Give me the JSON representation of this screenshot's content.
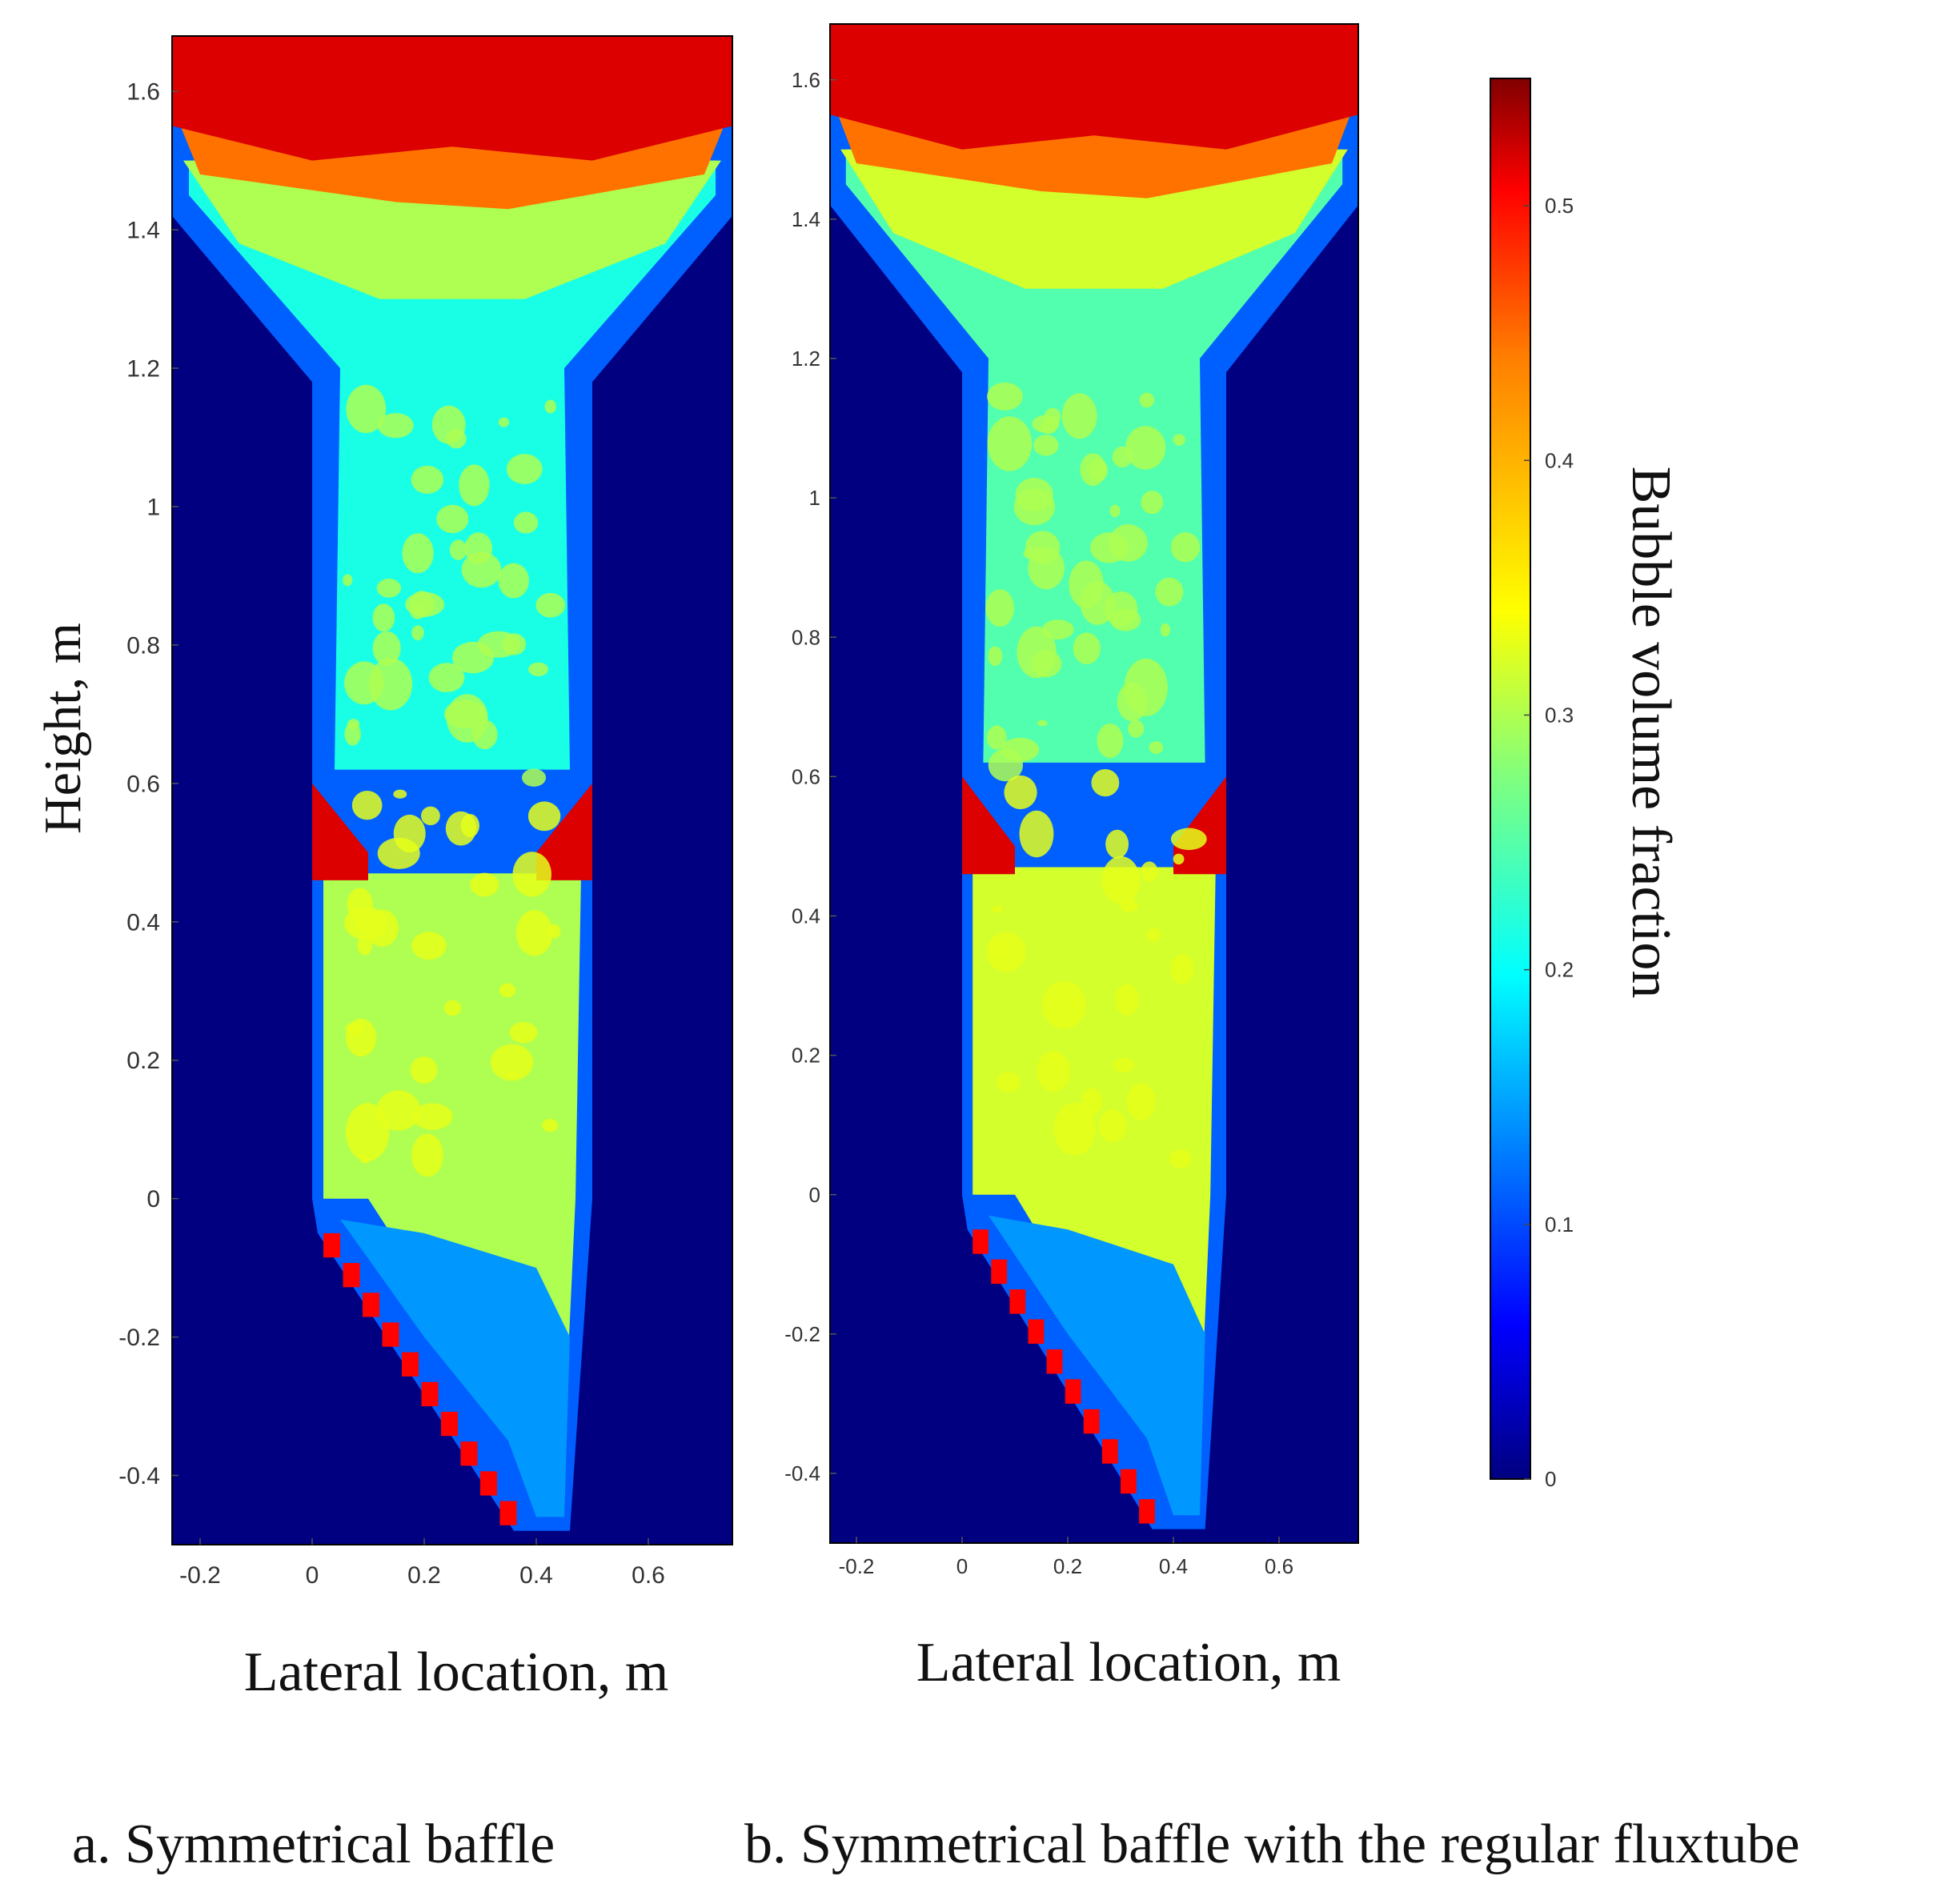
{
  "chart_data": [
    {
      "type": "heatmap",
      "panel": "a",
      "caption": "a. Symmetrical baffle",
      "xlabel": "Lateral location, m",
      "ylabel": "Height, m",
      "xlim": [
        -0.25,
        0.75
      ],
      "ylim": [
        -0.5,
        1.68
      ],
      "xticks": [
        -0.2,
        0,
        0.2,
        0.4,
        0.6
      ],
      "xtick_labels": [
        "-0.2",
        "0",
        "0.2",
        "0.4",
        "0.6"
      ],
      "yticks": [
        -0.4,
        -0.2,
        0,
        0.2,
        0.4,
        0.6,
        0.8,
        1,
        1.2,
        1.4,
        1.6
      ],
      "ytick_labels": [
        "-0.4",
        "-0.2",
        "0",
        "0.2",
        "0.4",
        "0.6",
        "0.8",
        "1",
        "1.2",
        "1.4",
        "1.6"
      ],
      "regions": [
        {
          "zone": "free surface (top)",
          "y_range": [
            1.5,
            1.68
          ],
          "bubble_fraction": 0.5
        },
        {
          "zone": "upper funnel",
          "y_range": [
            1.25,
            1.5
          ],
          "bubble_fraction": 0.3
        },
        {
          "zone": "upper column",
          "y_range": [
            0.6,
            1.25
          ],
          "bubble_fraction": 0.22
        },
        {
          "zone": "baffle corners",
          "y_range": [
            0.45,
            0.6
          ],
          "bubble_fraction": 0.5
        },
        {
          "zone": "lower column",
          "y_range": [
            0.0,
            0.45
          ],
          "bubble_fraction": 0.3
        },
        {
          "zone": "stepped inlet",
          "y_range": [
            -0.5,
            0.0
          ],
          "bubble_fraction": 0.15
        }
      ]
    },
    {
      "type": "heatmap",
      "panel": "b",
      "caption": "b. Symmetrical baffle with the regular fluxtube",
      "xlabel": "Lateral location, m",
      "ylabel": "",
      "xlim": [
        -0.25,
        0.75
      ],
      "ylim": [
        -0.5,
        1.68
      ],
      "xticks": [
        -0.2,
        0,
        0.2,
        0.4,
        0.6
      ],
      "xtick_labels": [
        "-0.2",
        "0",
        "0.2",
        "0.4",
        "0.6"
      ],
      "yticks": [
        -0.4,
        -0.2,
        0,
        0.2,
        0.4,
        0.6,
        0.8,
        1,
        1.2,
        1.4,
        1.6
      ],
      "ytick_labels": [
        "-0.4",
        "-0.2",
        "0",
        "0.2",
        "0.4",
        "0.6",
        "0.8",
        "1",
        "1.2",
        "1.4",
        "1.6"
      ],
      "regions": [
        {
          "zone": "free surface (top)",
          "y_range": [
            1.5,
            1.68
          ],
          "bubble_fraction": 0.5
        },
        {
          "zone": "upper funnel",
          "y_range": [
            1.25,
            1.5
          ],
          "bubble_fraction": 0.32
        },
        {
          "zone": "upper column",
          "y_range": [
            0.6,
            1.25
          ],
          "bubble_fraction": 0.25
        },
        {
          "zone": "baffle corners",
          "y_range": [
            0.48,
            0.6
          ],
          "bubble_fraction": 0.5
        },
        {
          "zone": "lower column",
          "y_range": [
            0.0,
            0.48
          ],
          "bubble_fraction": 0.32
        },
        {
          "zone": "stepped inlet",
          "y_range": [
            -0.5,
            0.0
          ],
          "bubble_fraction": 0.15
        }
      ]
    }
  ],
  "colorbar": {
    "label": "Bubble volume fraction",
    "range": [
      0,
      0.55
    ],
    "ticks": [
      0,
      0.1,
      0.2,
      0.3,
      0.4,
      0.5
    ],
    "tick_labels": [
      "0",
      "0.1",
      "0.2",
      "0.3",
      "0.4",
      "0.5"
    ],
    "colormap": "jet",
    "colors": [
      "#000080",
      "#0000ff",
      "#00ffff",
      "#7fff7f",
      "#ffff00",
      "#ff7f00",
      "#ff0000",
      "#800000"
    ]
  },
  "colors": {
    "background_field": "#000080",
    "frame": "#000000"
  }
}
